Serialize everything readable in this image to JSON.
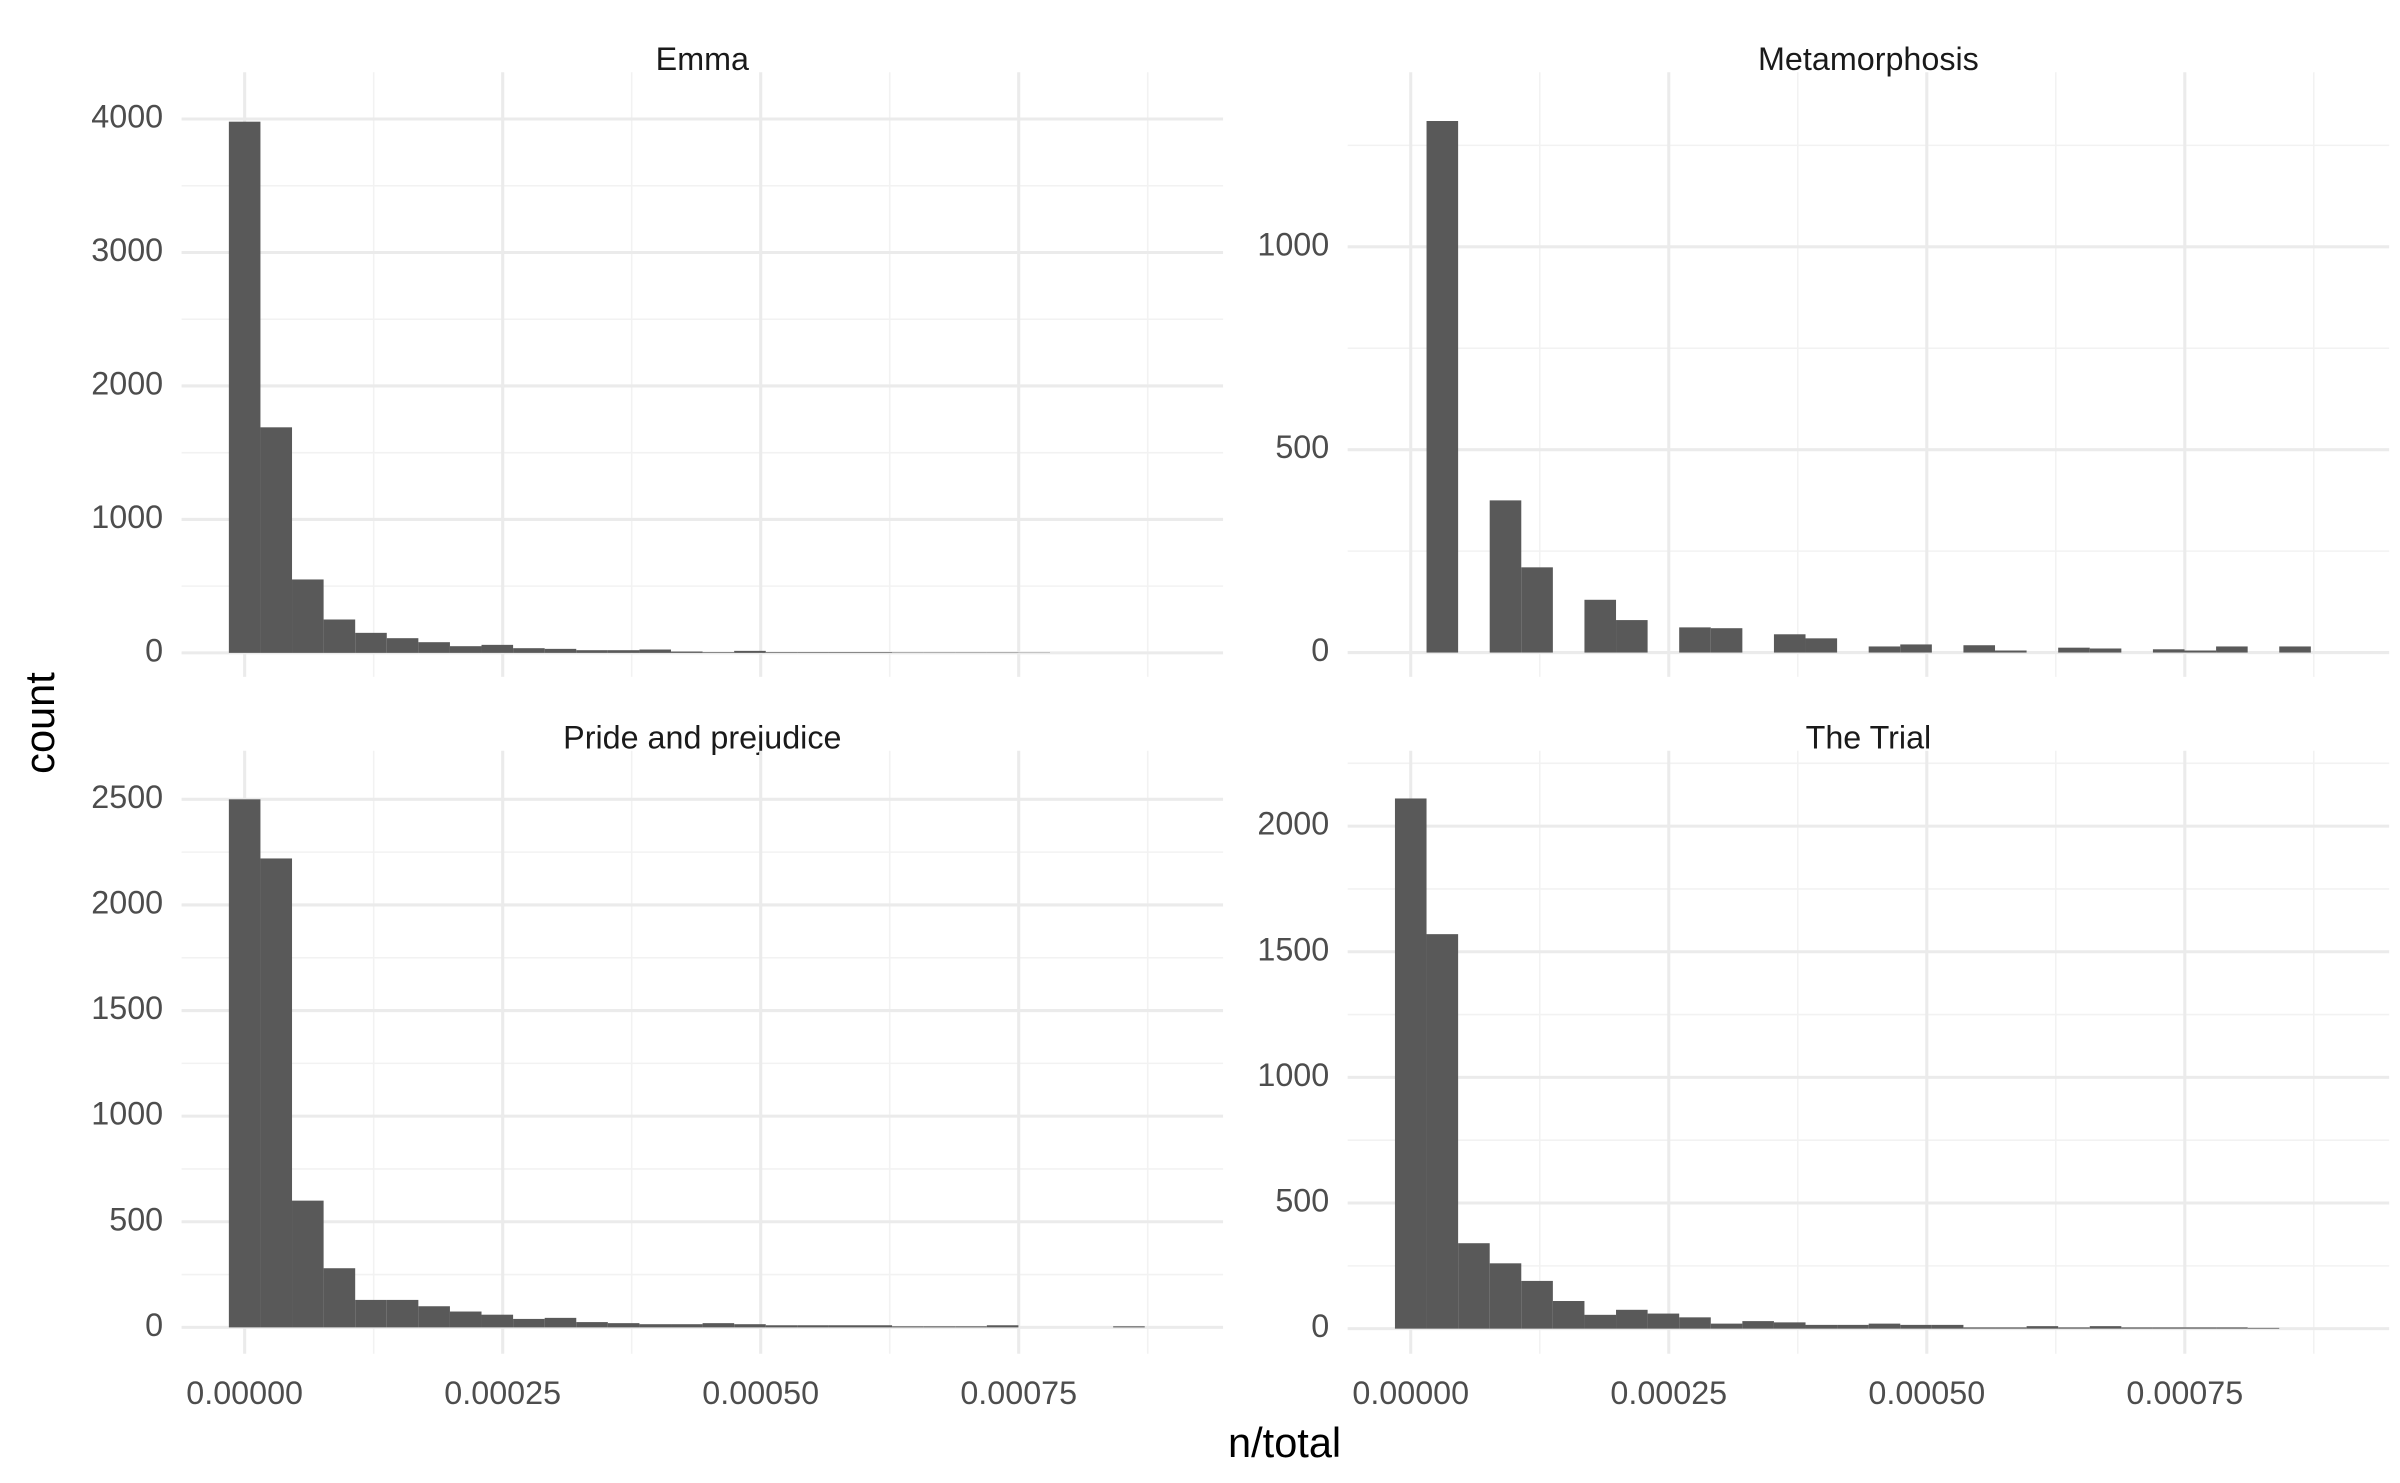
{
  "y_label": "count",
  "x_label": "n/total",
  "chart_data": [
    {
      "type": "histogram",
      "title": "Emma",
      "color": "#595959",
      "grid": true,
      "x_tick_labels": false,
      "bins": [
        -1.53e-05,
        1.53e-05,
        4.59e-05,
        7.65e-05,
        0.0001071,
        0.0001377,
        0.0001683,
        0.0001989,
        0.0002295,
        0.0002601,
        0.0002907,
        0.0003213,
        0.0003519,
        0.0003825,
        0.0004131,
        0.0004437,
        0.0004743,
        0.0005049,
        0.0005355,
        0.0005661,
        0.0005967,
        0.0006273,
        0.0006579,
        0.0006885,
        0.0007191,
        0.0007497,
        0.0007803,
        0.0008109,
        0.0008415,
        0.0008721,
        0.0009027
      ],
      "values": [
        3980,
        1690,
        550,
        250,
        150,
        110,
        80,
        50,
        60,
        35,
        30,
        20,
        20,
        25,
        10,
        5,
        15,
        5,
        5,
        5,
        5,
        3,
        3,
        3,
        3,
        2,
        0,
        0,
        0,
        0
      ],
      "xlim": [
        -6.11e-05,
        0.000948
      ],
      "xticks": [
        {
          "value": 0,
          "label": "0.00000"
        },
        {
          "value": 0.00025,
          "label": "0.00025"
        },
        {
          "value": 0.0005,
          "label": "0.00050"
        },
        {
          "value": 0.00075,
          "label": "0.00075"
        }
      ],
      "ylim": [
        -180,
        4350
      ],
      "yticks": [
        0,
        1000,
        2000,
        3000,
        4000
      ]
    },
    {
      "type": "histogram",
      "title": "Metamorphosis",
      "color": "#595959",
      "grid": true,
      "x_tick_labels": false,
      "bins": [
        -1.53e-05,
        1.53e-05,
        4.59e-05,
        7.65e-05,
        0.0001071,
        0.0001377,
        0.0001683,
        0.0001989,
        0.0002295,
        0.0002601,
        0.0002907,
        0.0003213,
        0.0003519,
        0.0003825,
        0.0004131,
        0.0004437,
        0.0004743,
        0.0005049,
        0.0005355,
        0.0005661,
        0.0005967,
        0.0006273,
        0.0006579,
        0.0006885,
        0.0007191,
        0.0007497,
        0.0007803,
        0.0008109,
        0.0008415,
        0.0008721,
        0.0009027
      ],
      "values": [
        0,
        1310,
        0,
        375,
        210,
        0,
        130,
        80,
        0,
        62,
        60,
        0,
        45,
        35,
        0,
        15,
        20,
        0,
        18,
        5,
        0,
        12,
        10,
        0,
        8,
        5,
        15,
        0,
        15,
        0
      ],
      "xlim": [
        -6.11e-05,
        0.000948
      ],
      "xticks": [
        {
          "value": 0,
          "label": "0.00000"
        },
        {
          "value": 0.00025,
          "label": "0.00025"
        },
        {
          "value": 0.0005,
          "label": "0.00050"
        },
        {
          "value": 0.00075,
          "label": "0.00075"
        }
      ],
      "ylim": [
        -60,
        1430
      ],
      "yticks": [
        0,
        500,
        1000
      ]
    },
    {
      "type": "histogram",
      "title": "Pride and prejudice",
      "color": "#595959",
      "grid": true,
      "x_tick_labels": true,
      "bins": [
        -1.53e-05,
        1.53e-05,
        4.59e-05,
        7.65e-05,
        0.0001071,
        0.0001377,
        0.0001683,
        0.0001989,
        0.0002295,
        0.0002601,
        0.0002907,
        0.0003213,
        0.0003519,
        0.0003825,
        0.0004131,
        0.0004437,
        0.0004743,
        0.0005049,
        0.0005355,
        0.0005661,
        0.0005967,
        0.0006273,
        0.0006579,
        0.0006885,
        0.0007191,
        0.0007497,
        0.0007803,
        0.0008109,
        0.0008415,
        0.0008721,
        0.0009027
      ],
      "values": [
        2500,
        2220,
        600,
        280,
        130,
        130,
        100,
        75,
        60,
        40,
        45,
        25,
        20,
        15,
        15,
        20,
        15,
        10,
        10,
        10,
        10,
        5,
        5,
        5,
        10,
        0,
        0,
        0,
        5,
        0
      ],
      "xlim": [
        -6.11e-05,
        0.000948
      ],
      "xticks": [
        {
          "value": 0,
          "label": "0.00000"
        },
        {
          "value": 0.00025,
          "label": "0.00025"
        },
        {
          "value": 0.0005,
          "label": "0.00050"
        },
        {
          "value": 0.00075,
          "label": "0.00075"
        }
      ],
      "ylim": [
        -125,
        2730
      ],
      "yticks": [
        0,
        500,
        1000,
        1500,
        2000,
        2500
      ]
    },
    {
      "type": "histogram",
      "title": "The Trial",
      "color": "#595959",
      "grid": true,
      "x_tick_labels": true,
      "bins": [
        -1.53e-05,
        1.53e-05,
        4.59e-05,
        7.65e-05,
        0.0001071,
        0.0001377,
        0.0001683,
        0.0001989,
        0.0002295,
        0.0002601,
        0.0002907,
        0.0003213,
        0.0003519,
        0.0003825,
        0.0004131,
        0.0004437,
        0.0004743,
        0.0005049,
        0.0005355,
        0.0005661,
        0.0005967,
        0.0006273,
        0.0006579,
        0.0006885,
        0.0007191,
        0.0007497,
        0.0007803,
        0.0008109,
        0.0008415,
        0.0008721,
        0.0009027
      ],
      "values": [
        2110,
        1570,
        340,
        260,
        190,
        110,
        55,
        75,
        60,
        45,
        20,
        30,
        25,
        15,
        15,
        20,
        15,
        15,
        5,
        5,
        10,
        5,
        10,
        5,
        5,
        5,
        5,
        3,
        0,
        0
      ],
      "xlim": [
        -6.11e-05,
        0.000948
      ],
      "xticks": [
        {
          "value": 0,
          "label": "0.00000"
        },
        {
          "value": 0.00025,
          "label": "0.00025"
        },
        {
          "value": 0.0005,
          "label": "0.00050"
        },
        {
          "value": 0.00075,
          "label": "0.00075"
        }
      ],
      "ylim": [
        -100,
        2300
      ],
      "yticks": [
        0,
        500,
        1000,
        1500,
        2000
      ]
    }
  ]
}
